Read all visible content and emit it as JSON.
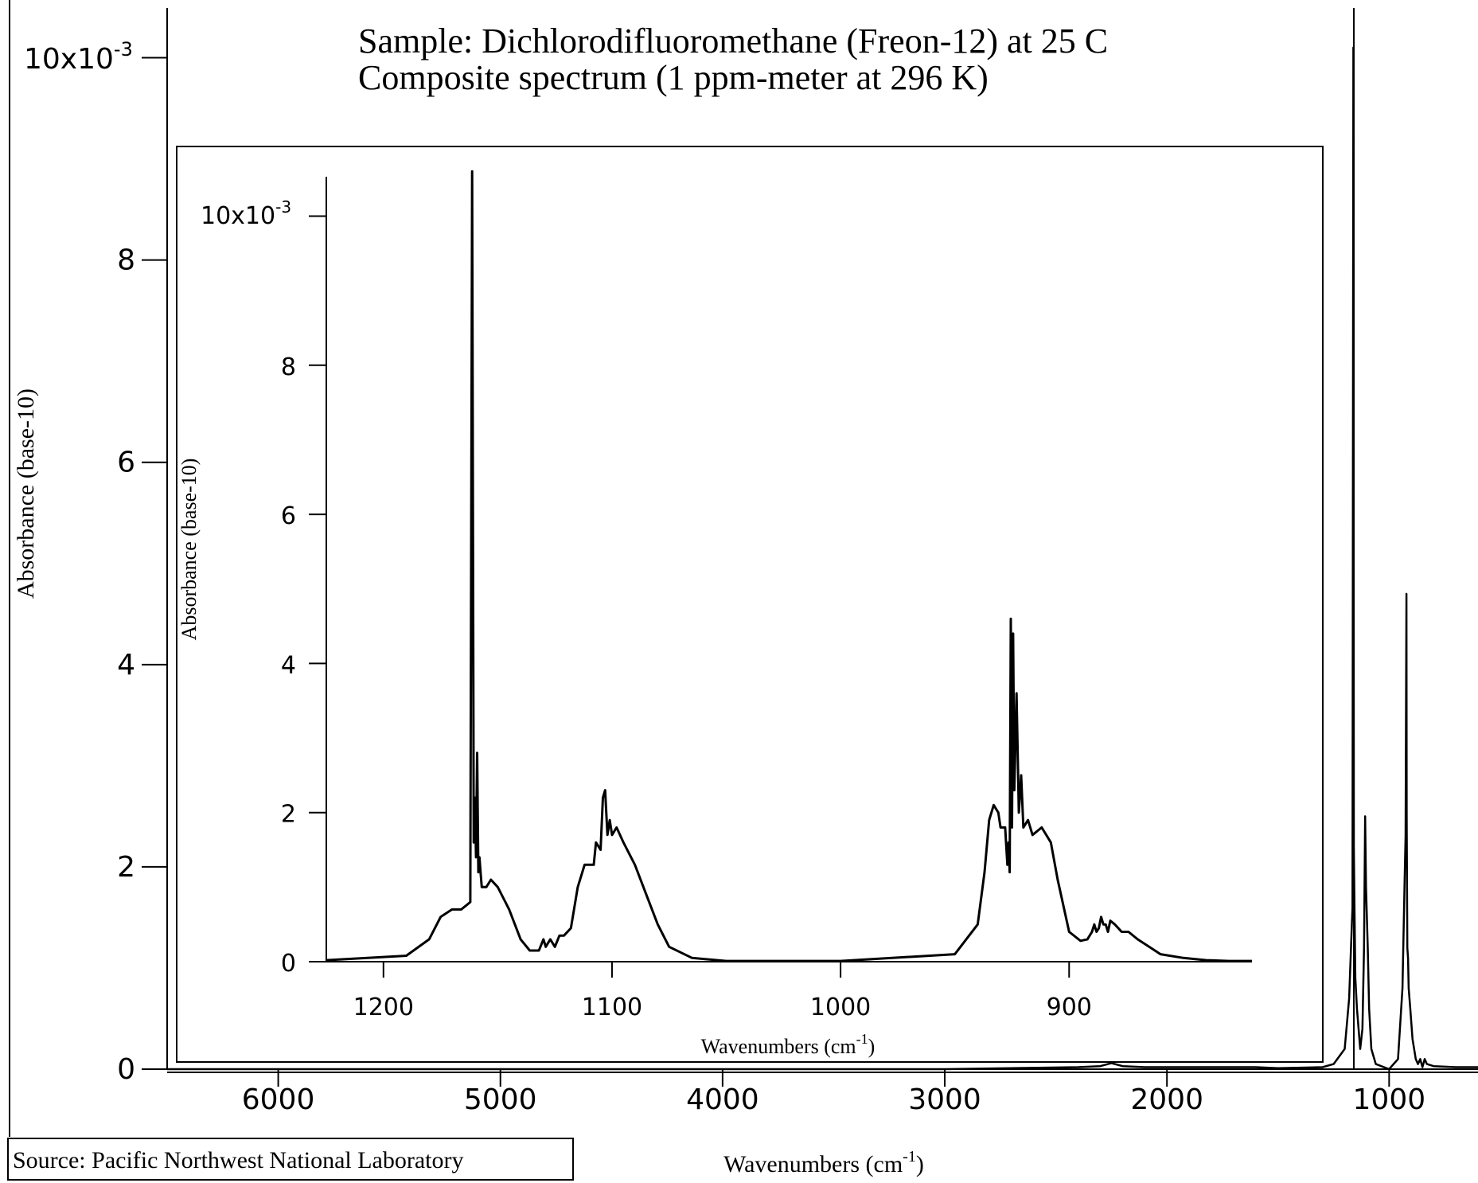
{
  "chart_data": [
    {
      "id": "main",
      "type": "line",
      "title_lines": [
        "Sample: Dichlorodifluoromethane (Freon-12) at 25 C",
        "Composite spectrum (1 ppm-meter at 296 K)"
      ],
      "xlabel": "Wavenumbers (cm",
      "xlabel_sup": "-1",
      "xlabel_close": ")",
      "ylabel": "Absorbance (base-10)",
      "y_exponent_label": "10x10",
      "y_exponent_sup": "-3",
      "xlim": [
        6500,
        600
      ],
      "ylim": [
        0,
        0.0105
      ],
      "x_reversed": true,
      "x_ticks": [
        6000,
        5000,
        4000,
        3000,
        2000,
        1000
      ],
      "x_tick_labels": [
        "6000",
        "5000",
        "4000",
        "3000",
        "2000",
        "1000"
      ],
      "y_ticks": [
        0,
        0.002,
        0.004,
        0.006,
        0.008,
        0.01
      ],
      "y_tick_labels": [
        "0",
        "2",
        "4",
        "6",
        "8",
        ""
      ],
      "grid": false,
      "series": [
        {
          "x": [
            6500,
            3000,
            2400,
            2300,
            2250,
            2200,
            2100,
            1800,
            1600,
            1500,
            1300,
            1250,
            1200,
            1180,
            1170,
            1165,
            1161,
            1159,
            1156,
            1152,
            1145,
            1130,
            1120,
            1113,
            1108,
            1104,
            1100,
            1096,
            1090,
            1080,
            1060,
            1000,
            960,
            940,
            930,
            926,
            922,
            921,
            918,
            915,
            912,
            905,
            895,
            880,
            870,
            860,
            850,
            840,
            830,
            800,
            700,
            600
          ],
          "y": [
            0,
            0,
            2e-05,
            3e-05,
            6e-05,
            3e-05,
            2e-05,
            2e-05,
            2e-05,
            1e-05,
            2e-05,
            5e-05,
            0.0002,
            0.0007,
            0.0013,
            0.0016,
            0.0101,
            0.0022,
            0.0016,
            0.0009,
            0.0006,
            0.0002,
            0.0004,
            0.0012,
            0.0025,
            0.0018,
            0.0015,
            0.0012,
            0.0006,
            0.0002,
            5e-05,
            0,
            0.0001,
            0.0008,
            0.0019,
            0.0023,
            0.0047,
            0.0025,
            0.0012,
            0.0011,
            0.0008,
            0.0006,
            0.0003,
            0.0001,
            5e-05,
            0.0001,
            2e-05,
            0.0001,
            5e-05,
            3e-05,
            2e-05,
            2e-05
          ]
        }
      ]
    },
    {
      "id": "inset",
      "type": "line",
      "xlabel": "Wavenumbers (cm",
      "xlabel_sup": "-1",
      "xlabel_close": ")",
      "ylabel": "Absorbance (base-10)",
      "y_exponent_label": "10x10",
      "y_exponent_sup": "-3",
      "xlim": [
        1225,
        820
      ],
      "ylim": [
        0,
        0.0105
      ],
      "x_reversed": true,
      "x_ticks": [
        1200,
        1100,
        1000,
        900
      ],
      "x_tick_labels": [
        "1200",
        "1100",
        "1000",
        "900"
      ],
      "y_ticks": [
        0,
        0.002,
        0.004,
        0.006,
        0.008,
        0.01
      ],
      "y_tick_labels": [
        "0",
        "2",
        "4",
        "6",
        "8",
        ""
      ],
      "grid": false,
      "series": [
        {
          "x": [
            1225,
            1190,
            1180,
            1175,
            1170,
            1166,
            1164,
            1162,
            1161.2,
            1160.5,
            1160,
            1159.5,
            1159,
            1158.5,
            1158,
            1157.5,
            1157,
            1155,
            1153,
            1150,
            1145,
            1140,
            1136,
            1132,
            1130,
            1129,
            1127,
            1125,
            1123,
            1121,
            1118,
            1115,
            1112,
            1110,
            1108,
            1107,
            1105,
            1104,
            1103,
            1102,
            1101,
            1100,
            1098,
            1095,
            1090,
            1085,
            1080,
            1075,
            1065,
            1050,
            1000,
            950,
            940,
            937,
            935,
            933,
            931,
            930,
            928,
            927,
            926.5,
            926,
            925.5,
            925,
            924.5,
            924,
            923,
            922,
            921,
            920,
            918,
            916,
            912,
            908,
            905,
            900,
            895,
            892,
            890,
            889,
            888,
            887,
            886,
            885,
            884,
            883,
            882,
            880,
            877,
            874,
            870,
            865,
            860,
            850,
            840,
            830,
            820
          ],
          "y": [
            2e-05,
            8e-05,
            0.0003,
            0.0006,
            0.0007,
            0.0007,
            0.00075,
            0.0008,
            0.0106,
            0.0016,
            0.0022,
            0.0014,
            0.0028,
            0.0012,
            0.0014,
            0.0012,
            0.001,
            0.001,
            0.0011,
            0.001,
            0.0007,
            0.0003,
            0.00015,
            0.00015,
            0.0003,
            0.0002,
            0.0003,
            0.0002,
            0.00035,
            0.00035,
            0.00045,
            0.001,
            0.0013,
            0.0013,
            0.0013,
            0.0016,
            0.0015,
            0.0022,
            0.0023,
            0.0017,
            0.0019,
            0.0017,
            0.0018,
            0.0016,
            0.0013,
            0.0009,
            0.0005,
            0.0002,
            5e-05,
            1e-05,
            1e-05,
            0.0001,
            0.0005,
            0.0012,
            0.0019,
            0.0021,
            0.002,
            0.0018,
            0.0018,
            0.0013,
            0.0016,
            0.0012,
            0.0046,
            0.0018,
            0.0044,
            0.0023,
            0.0036,
            0.002,
            0.0025,
            0.0018,
            0.0019,
            0.0017,
            0.0018,
            0.0016,
            0.0011,
            0.0004,
            0.00028,
            0.0003,
            0.0004,
            0.0005,
            0.0004,
            0.00045,
            0.0006,
            0.0005,
            0.0005,
            0.0004,
            0.00055,
            0.0005,
            0.0004,
            0.0004,
            0.0003,
            0.0002,
            0.0001,
            5e-05,
            2e-05,
            1e-05,
            1e-05
          ]
        }
      ]
    }
  ],
  "source_label": "Source: Pacific Northwest National Laboratory",
  "colors": {
    "line": "#000000",
    "background": "#ffffff",
    "frame": "#000000"
  }
}
